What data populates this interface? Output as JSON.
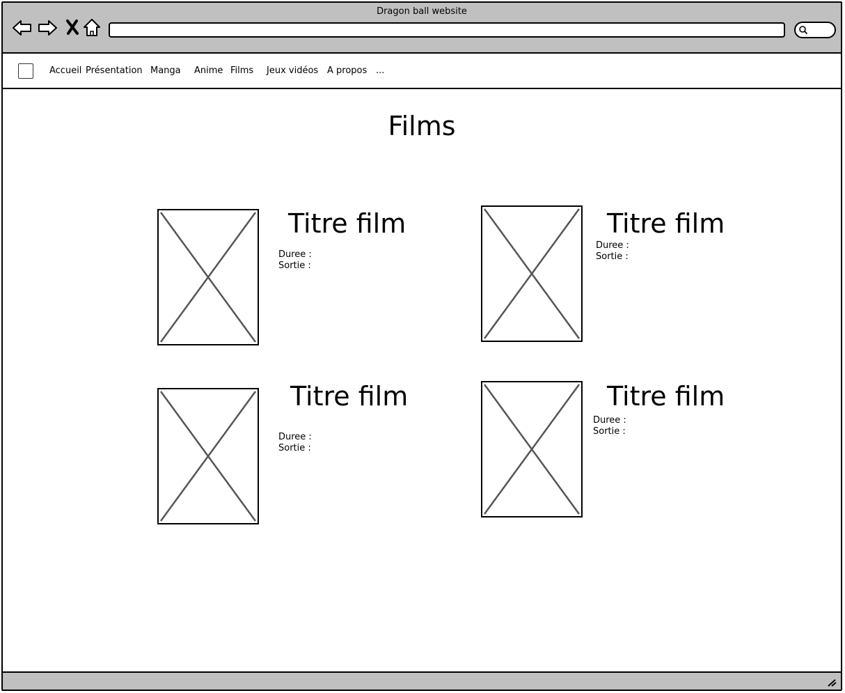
{
  "window": {
    "title": "Dragon ball website"
  },
  "toolbar": {
    "back_icon": "back-arrow-icon",
    "forward_icon": "forward-arrow-icon",
    "stop_icon": "close-x-icon",
    "home_icon": "home-icon",
    "url_value": "",
    "search_icon": "search-icon"
  },
  "nav": {
    "items": [
      {
        "label": "Accueil"
      },
      {
        "label": "Présentation"
      },
      {
        "label": "Manga"
      },
      {
        "label": "Anime"
      },
      {
        "label": "Films"
      },
      {
        "label": "Jeux vidéos"
      },
      {
        "label": "A propos"
      },
      {
        "label": "..."
      }
    ]
  },
  "main": {
    "heading": "Films",
    "films": [
      {
        "title": "Titre film",
        "duree_label": "Duree :",
        "sortie_label": "Sortie :"
      },
      {
        "title": "Titre film",
        "duree_label": "Duree :",
        "sortie_label": "Sortie :"
      },
      {
        "title": "Titre film",
        "duree_label": "Duree :",
        "sortie_label": "Sortie :"
      },
      {
        "title": "Titre film",
        "duree_label": "Duree :",
        "sortie_label": "Sortie :"
      }
    ]
  },
  "colors": {
    "chrome": "#c0c0c0",
    "stroke": "#000000",
    "placeholder_x": "#555555"
  }
}
